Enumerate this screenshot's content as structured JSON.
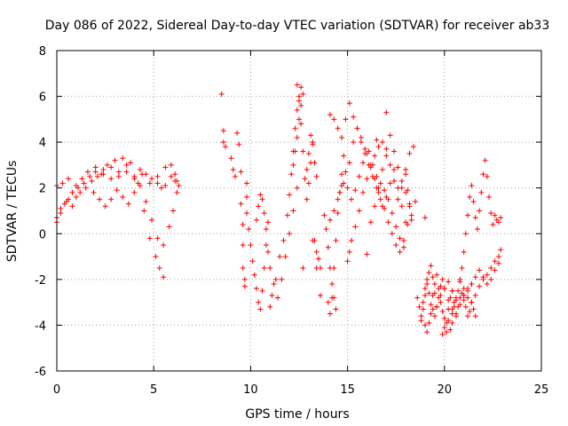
{
  "chart_data": {
    "type": "scatter",
    "title": "Day 086 of 2022, Sidereal Day-to-day VTEC variation (SDTVAR) for receiver ab33",
    "xlabel": "GPS time / hours",
    "ylabel": "SDTVAR / TECUs",
    "xlim": [
      0,
      25
    ],
    "ylim": [
      -6,
      8
    ],
    "x_ticks": [
      0,
      5,
      10,
      15,
      20,
      25
    ],
    "y_ticks": [
      -6,
      -4,
      -2,
      0,
      2,
      4,
      6,
      8
    ],
    "grid": true,
    "marker": "+",
    "series": [
      {
        "name": "SDTVAR",
        "color": "#ff0000",
        "segments": [
          {
            "x": [
              0.0,
              0.3,
              0.6,
              1.0,
              1.3,
              1.6,
              2.0,
              2.4,
              2.8,
              3.2,
              3.6,
              4.0,
              4.4,
              4.8,
              5.2,
              5.6,
              5.9,
              6.1,
              6.2
            ],
            "y": [
              2.1,
              2.2,
              2.4,
              2.1,
              2.4,
              2.7,
              2.9,
              2.8,
              2.9,
              2.7,
              3.0,
              2.4,
              2.6,
              2.2,
              2.5,
              2.9,
              3.0,
              2.6,
              2.3
            ]
          },
          {
            "x": [
              0.0,
              0.2,
              0.4,
              0.6,
              0.8,
              1.0,
              1.2,
              1.5,
              1.8,
              2.1,
              2.4,
              2.8,
              3.2,
              3.6,
              4.0,
              4.3,
              4.6,
              4.9,
              5.2,
              5.4,
              5.6,
              5.9,
              6.1,
              6.3
            ],
            "y": [
              0.5,
              0.9,
              1.3,
              1.5,
              1.2,
              1.6,
              1.8,
              2.0,
              2.3,
              2.5,
              2.6,
              2.4,
              2.5,
              2.7,
              2.5,
              2.8,
              2.6,
              2.4,
              2.2,
              2.0,
              2.1,
              2.5,
              2.3,
              2.1
            ]
          },
          {
            "x": [
              0.0,
              0.2,
              0.5,
              0.8,
              1.1,
              1.4,
              1.7,
              2.0,
              2.3,
              2.6,
              3.0,
              3.4,
              3.8,
              4.2,
              4.5,
              4.8,
              5.1,
              5.3,
              5.5
            ],
            "y": [
              0.7,
              1.1,
              1.4,
              1.8,
              2.0,
              2.2,
              2.5,
              2.7,
              2.6,
              3.0,
              3.2,
              3.3,
              3.1,
              2.2,
              1.0,
              -0.2,
              -1.0,
              -1.5,
              -1.9
            ]
          },
          {
            "x": [
              1.9,
              2.2,
              2.5,
              2.8,
              3.1,
              3.4,
              3.7,
              4.0,
              4.3,
              4.6,
              4.9,
              5.2,
              5.5,
              5.8,
              6.0,
              6.2
            ],
            "y": [
              1.8,
              1.5,
              1.2,
              1.5,
              1.9,
              1.6,
              1.3,
              1.8,
              2.1,
              1.4,
              0.6,
              -0.2,
              -0.5,
              0.3,
              1.0,
              1.8
            ]
          },
          {
            "x": [
              8.5,
              8.6,
              8.6,
              8.7
            ],
            "y": [
              6.1,
              4.5,
              4.0,
              3.8
            ]
          },
          {
            "x": [
              9.0,
              9.1,
              9.2,
              9.3,
              9.4,
              9.5,
              9.5,
              9.6
            ],
            "y": [
              3.3,
              2.8,
              2.5,
              4.4,
              3.9,
              2.7,
              1.3,
              0.4
            ]
          },
          {
            "x": [
              9.6,
              9.6,
              9.7,
              9.7,
              9.8,
              9.8,
              9.8,
              9.9
            ],
            "y": [
              -0.5,
              -1.5,
              -2.0,
              -2.3,
              2.2,
              1.6,
              0.9,
              0.2
            ]
          },
          {
            "x": [
              10.0,
              10.1,
              10.2,
              10.3,
              10.4,
              10.5,
              10.6,
              10.7,
              10.8,
              10.9
            ],
            "y": [
              -0.5,
              -1.2,
              -1.8,
              -2.4,
              -3.0,
              -3.3,
              -2.5,
              -1.5,
              -0.5,
              0.5
            ]
          },
          {
            "x": [
              10.3,
              10.4,
              10.5,
              10.6,
              10.7,
              10.8
            ],
            "y": [
              0.6,
              1.2,
              1.7,
              1.5,
              0.9,
              0.2
            ]
          },
          {
            "x": [
              10.9,
              11.0,
              11.2,
              11.4,
              11.6,
              11.8,
              12.0,
              12.2,
              12.4
            ],
            "y": [
              -0.8,
              -1.5,
              -2.2,
              -2.8,
              -2.0,
              -1.0,
              0.0,
              1.0,
              2.0
            ]
          },
          {
            "x": [
              11.0,
              11.1,
              11.3,
              11.5,
              11.7,
              11.9,
              12.0,
              12.1,
              12.2,
              12.3,
              12.4,
              12.5,
              12.6
            ],
            "y": [
              -3.2,
              -2.7,
              -2.0,
              -1.0,
              -0.3,
              0.8,
              1.7,
              2.6,
              3.6,
              4.6,
              5.4,
              6.0,
              6.4
            ]
          },
          {
            "x": [
              12.4,
              12.5,
              12.6,
              12.7,
              12.8,
              12.9,
              13.0,
              13.1,
              13.2
            ],
            "y": [
              6.5,
              5.8,
              4.8,
              3.6,
              2.4,
              1.5,
              2.2,
              3.1,
              4.0
            ]
          },
          {
            "x": [
              12.2,
              12.3,
              12.4,
              12.5,
              12.6,
              12.7
            ],
            "y": [
              3.0,
              3.6,
              4.2,
              5.0,
              5.6,
              6.1
            ]
          },
          {
            "x": [
              12.9,
              13.0,
              13.1,
              13.2,
              13.3,
              13.4
            ],
            "y": [
              2.8,
              3.5,
              4.3,
              3.9,
              3.1,
              2.5
            ]
          },
          {
            "x": [
              13.3,
              13.4,
              13.5,
              13.6
            ],
            "y": [
              -0.3,
              -0.8,
              -1.1,
              -1.5
            ]
          },
          {
            "x": [
              13.8,
              13.9,
              14.0,
              14.1,
              14.2,
              14.3,
              14.4
            ],
            "y": [
              0.8,
              0.2,
              -0.6,
              -1.5,
              -2.2,
              -2.8,
              -3.3
            ]
          },
          {
            "x": [
              14.0,
              14.1,
              14.2,
              14.3,
              14.4,
              14.5,
              14.6,
              14.7,
              14.8
            ],
            "y": [
              -3.0,
              -3.5,
              -2.8,
              -1.5,
              -0.3,
              0.9,
              1.8,
              2.6,
              3.4
            ]
          },
          {
            "x": [
              14.1,
              14.3,
              14.5,
              14.7,
              14.9,
              15.1,
              15.3,
              15.5,
              15.7,
              15.9,
              16.1,
              16.3,
              16.5,
              16.7,
              16.9,
              17.1,
              17.3,
              17.5,
              17.7,
              17.9
            ],
            "y": [
              5.2,
              5.0,
              4.6,
              4.2,
              5.0,
              5.7,
              5.1,
              4.6,
              4.0,
              3.5,
              3.6,
              3.0,
              2.5,
              2.2,
              1.9,
              1.5,
              0.9,
              0.3,
              -0.2,
              -0.6
            ]
          },
          {
            "x": [
              14.3,
              14.5,
              14.7,
              14.9,
              15.1,
              15.3,
              15.5,
              15.7,
              15.9,
              16.1,
              16.3,
              16.5,
              16.7,
              16.9,
              17.1,
              17.3,
              17.5,
              17.7,
              17.9,
              18.1
            ],
            "y": [
              1.0,
              1.5,
              2.1,
              2.7,
              3.1,
              4.0,
              4.6,
              4.2,
              3.7,
              3.0,
              2.5,
              2.0,
              1.5,
              1.1,
              0.5,
              0.0,
              -0.5,
              -0.8,
              -0.3,
              0.4
            ]
          },
          {
            "x": [
              14.6,
              14.8,
              15.0,
              15.2,
              15.4,
              15.6,
              15.8,
              16.0,
              16.2,
              16.4,
              16.6,
              16.8,
              17.0,
              17.2,
              17.4,
              17.6,
              17.8,
              18.0
            ],
            "y": [
              1.8,
              2.2,
              2.0,
              1.5,
              1.9,
              2.5,
              3.1,
              3.5,
              3.0,
              2.4,
              1.8,
              1.2,
              1.6,
              2.2,
              2.8,
              2.0,
              1.2,
              0.5
            ]
          },
          {
            "x": [
              15.0,
              15.1,
              15.2,
              15.4,
              15.6,
              15.8,
              16.0,
              16.2,
              16.4,
              16.6,
              16.8,
              17.0
            ],
            "y": [
              -1.2,
              -0.8,
              -0.3,
              0.3,
              1.0,
              1.8,
              2.4,
              2.9,
              3.4,
              3.8,
              4.0,
              3.7
            ]
          },
          {
            "x": [
              16.2,
              16.4,
              16.6,
              16.8,
              17.0,
              17.2,
              17.4,
              17.6,
              17.8,
              18.0,
              18.2,
              18.4
            ],
            "y": [
              0.5,
              1.2,
              2.0,
              2.8,
              3.4,
              3.0,
              2.3,
              1.5,
              2.0,
              2.8,
              3.5,
              3.8
            ]
          },
          {
            "x": [
              17.2,
              17.4,
              17.6,
              17.8,
              18.0,
              18.2,
              18.3
            ],
            "y": [
              4.3,
              3.6,
              2.9,
              2.3,
              1.8,
              1.2,
              0.6
            ]
          },
          {
            "x": [
              18.0,
              18.1,
              18.2,
              18.3
            ],
            "y": [
              2.6,
              1.9,
              1.3,
              0.8
            ]
          },
          {
            "x": [
              18.6,
              18.7,
              18.8,
              18.9,
              19.0,
              19.1,
              19.2,
              19.3,
              19.4,
              19.5,
              19.6,
              19.7,
              19.8,
              19.9,
              20.0,
              20.1,
              20.2,
              20.3,
              20.4,
              20.5,
              20.6,
              20.7,
              20.8,
              20.9,
              21.0,
              21.1,
              21.2,
              21.3,
              21.4,
              21.5,
              21.6
            ],
            "y": [
              -2.8,
              -3.2,
              -3.6,
              -3.0,
              -2.4,
              -2.0,
              -2.6,
              -3.1,
              -2.7,
              -2.2,
              -1.8,
              -2.4,
              -3.0,
              -3.4,
              -3.7,
              -3.9,
              -3.3,
              -2.8,
              -2.5,
              -3.0,
              -3.5,
              -3.2,
              -2.8,
              -2.6,
              -2.9,
              -3.2,
              -3.6,
              -3.4,
              -3.0,
              -3.3,
              -3.6
            ]
          },
          {
            "x": [
              18.8,
              18.9,
              19.0,
              19.1,
              19.2,
              19.3,
              19.4,
              19.5,
              19.6,
              19.7,
              19.8,
              19.9,
              20.0,
              20.2,
              20.4,
              20.6,
              20.8,
              21.0,
              21.2,
              21.4
            ],
            "y": [
              -3.8,
              -3.3,
              -2.7,
              -2.2,
              -1.7,
              -1.4,
              -1.9,
              -2.6,
              -3.2,
              -2.8,
              -2.3,
              -2.0,
              -2.4,
              -2.9,
              -3.3,
              -3.6,
              -3.1,
              -2.7,
              -2.4,
              -2.2
            ]
          },
          {
            "x": [
              19.0,
              19.1,
              19.2,
              19.3,
              19.4,
              19.5,
              19.6,
              19.8,
              20.0,
              20.2,
              20.4,
              20.6
            ],
            "y": [
              -4.0,
              -4.3,
              -3.9,
              -3.5,
              -3.3,
              -3.6,
              -3.2,
              -2.7,
              -2.4,
              -2.1,
              -2.5,
              -2.8
            ]
          },
          {
            "x": [
              19.9,
              20.0,
              20.1,
              20.2,
              20.3,
              20.4
            ],
            "y": [
              -4.4,
              -4.1,
              -4.3,
              -3.8,
              -4.2,
              -3.9
            ]
          },
          {
            "x": [
              20.4,
              20.5,
              20.6,
              20.7,
              20.8,
              20.9,
              21.0,
              21.1,
              21.2,
              21.3,
              21.4,
              21.5,
              21.6,
              21.7,
              21.8,
              21.9,
              22.0,
              22.1,
              22.2,
              22.3,
              22.4,
              22.5,
              22.6,
              22.7,
              22.8,
              22.9
            ],
            "y": [
              -3.5,
              -3.2,
              -2.9,
              -2.5,
              -2.1,
              -1.5,
              -0.8,
              0.0,
              0.8,
              1.6,
              2.1,
              1.4,
              0.7,
              0.2,
              1.0,
              1.8,
              2.6,
              3.2,
              2.5,
              1.6,
              0.9,
              0.4,
              0.8,
              0.6,
              0.5,
              0.7
            ]
          },
          {
            "x": [
              20.8,
              21.0,
              21.2,
              21.4,
              21.6,
              21.8,
              22.0,
              22.2,
              22.4,
              22.6,
              22.8,
              22.9
            ],
            "y": [
              -2.0,
              -2.4,
              -2.8,
              -3.0,
              -2.7,
              -2.3,
              -2.0,
              -1.8,
              -1.5,
              -1.2,
              -1.0,
              -0.7
            ]
          },
          {
            "x": [
              21.0,
              21.2,
              21.4,
              21.6,
              21.8,
              22.0,
              22.2,
              22.4,
              22.6,
              22.8
            ],
            "y": [
              -2.7,
              -2.5,
              -2.2,
              -1.9,
              -1.6,
              -1.9,
              -2.2,
              -2.0,
              -1.6,
              -1.3
            ]
          },
          {
            "x": [
              12.7,
              13.2,
              13.4,
              13.6,
              14.1,
              16.0,
              16.5,
              17.0,
              18.5,
              19.0
            ],
            "y": [
              -1.5,
              -0.3,
              -1.5,
              -2.7,
              0.6,
              -0.9,
              4.1,
              5.3,
              1.4,
              0.7
            ]
          }
        ]
      }
    ]
  }
}
